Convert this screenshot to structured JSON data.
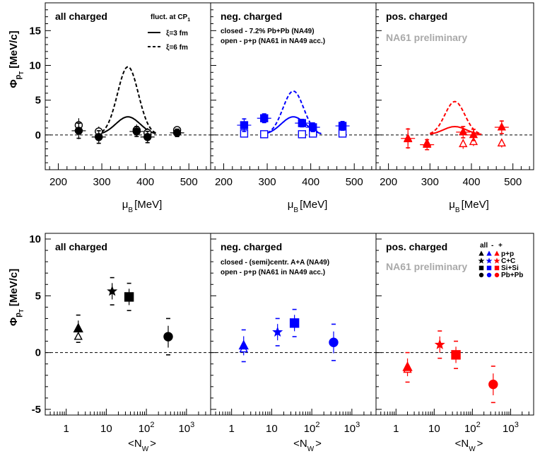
{
  "colors": {
    "all": "#000000",
    "neg": "#0000ff",
    "pos": "#ff0000",
    "prelim": "#a9a9a9"
  },
  "chart_data": [
    {
      "type": "scatter",
      "row": "top",
      "ylabel_main": "Φ",
      "ylabel_sub1": "p",
      "ylabel_sub2": "T",
      "ylabel_unit": "[MeV/c]",
      "xlabel_main": "μ",
      "xlabel_sub": "B",
      "xlabel_unit": "[MeV]",
      "xlim": [
        170,
        550
      ],
      "ylim": [
        -5,
        19
      ],
      "y_ticks": [
        "0",
        "5",
        "10",
        "15"
      ],
      "x_ticks": [
        "200",
        "300",
        "400",
        "500"
      ],
      "panels": [
        {
          "key": "all",
          "title": "all charged",
          "legend_title": "fluct. at CP",
          "legend_title_sub": "1",
          "legend_solid": "ξ=3 fm",
          "legend_dashed": "ξ=6 fm",
          "curve_solid": {
            "x0": 300,
            "x1": 425,
            "center": 360,
            "sigma": 28,
            "amp": 2.6
          },
          "curve_dashed": {
            "x0": 300,
            "x1": 425,
            "center": 360,
            "sigma": 24,
            "amp": 9.8
          },
          "closed": [
            {
              "x": 247,
              "y": 0.6,
              "err": 1.2
            },
            {
              "x": 293,
              "y": -0.3,
              "err": 1.0
            },
            {
              "x": 380,
              "y": 0.5,
              "err": 0.8
            },
            {
              "x": 405,
              "y": -0.3,
              "err": 0.9
            },
            {
              "x": 473,
              "y": 0.3,
              "err": 0.6
            }
          ],
          "open": [
            {
              "x": 247,
              "y": 1.4,
              "err": 1.0
            },
            {
              "x": 293,
              "y": 0.5,
              "err": 0.7
            },
            {
              "x": 380,
              "y": 0.7,
              "err": 0.8
            },
            {
              "x": 405,
              "y": 0.3,
              "err": 0.7
            },
            {
              "x": 473,
              "y": 0.7,
              "err": 0.5
            }
          ]
        },
        {
          "key": "neg",
          "title": "neg. charged",
          "note1": "closed - 7.2% Pb+Pb (NA49)",
          "note2": "open - p+p (NA61 in NA49 acc.)",
          "curve_solid": {
            "x0": 300,
            "x1": 425,
            "center": 360,
            "sigma": 28,
            "amp": 2.6
          },
          "curve_dashed": {
            "x0": 300,
            "x1": 425,
            "center": 360,
            "sigma": 24,
            "amp": 6.3
          },
          "closed": [
            {
              "x": 247,
              "y": 1.4,
              "err": 1.0
            },
            {
              "x": 293,
              "y": 2.4,
              "err": 0.7
            },
            {
              "x": 380,
              "y": 1.7,
              "err": 0.6
            },
            {
              "x": 405,
              "y": 1.1,
              "err": 0.7
            },
            {
              "x": 473,
              "y": 1.3,
              "err": 0.7
            }
          ],
          "open": [
            {
              "x": 247,
              "y": 0.2,
              "err": 0.5
            },
            {
              "x": 293,
              "y": 0.1,
              "err": 0.4
            },
            {
              "x": 380,
              "y": 0.1,
              "err": 0.4
            },
            {
              "x": 405,
              "y": 0.2,
              "err": 0.4
            },
            {
              "x": 473,
              "y": 0.2,
              "err": 0.4
            }
          ]
        },
        {
          "key": "pos",
          "title": "pos. charged",
          "note1": "NA61 preliminary",
          "curve_solid": {
            "x0": 300,
            "x1": 425,
            "center": 360,
            "sigma": 28,
            "amp": 1.2
          },
          "curve_dashed": {
            "x0": 300,
            "x1": 425,
            "center": 360,
            "sigma": 24,
            "amp": 4.8
          },
          "closed": [
            {
              "x": 247,
              "y": -0.5,
              "err": 1.5
            },
            {
              "x": 293,
              "y": -1.4,
              "err": 0.8
            },
            {
              "x": 380,
              "y": 0.4,
              "err": 0.9
            },
            {
              "x": 405,
              "y": 0.0,
              "err": 0.9
            },
            {
              "x": 473,
              "y": 1.1,
              "err": 1.0
            }
          ],
          "open": [
            {
              "x": 247,
              "y": -0.6,
              "err": 0.9
            },
            {
              "x": 293,
              "y": -1.2,
              "err": 0.6
            },
            {
              "x": 380,
              "y": -1.3,
              "err": 0.7
            },
            {
              "x": 405,
              "y": -1.0,
              "err": 0.6
            },
            {
              "x": 473,
              "y": -1.2,
              "err": 0.6
            }
          ]
        }
      ]
    },
    {
      "type": "scatter",
      "row": "bottom",
      "ylabel_main": "Φ",
      "ylabel_sub1": "p",
      "ylabel_sub2": "T",
      "ylabel_unit": "[MeV/c]",
      "xlabel_main": "<N",
      "xlabel_sub": "W",
      "xlabel_unit": ">",
      "x_log": true,
      "xlim": [
        0.3,
        4000
      ],
      "ylim": [
        -5.5,
        10.5
      ],
      "y_ticks": [
        "-5",
        "0",
        "5",
        "10"
      ],
      "x_ticks": [
        "1",
        "10",
        "10^2",
        "10^3"
      ],
      "panels": [
        {
          "key": "all",
          "title": "all charged",
          "points": [
            {
              "sys": "p+p",
              "x": 2,
              "y": 2.1,
              "err": 1.2,
              "open_y": 1.4,
              "open_err": 0.4
            },
            {
              "sys": "C+C",
              "x": 14,
              "y": 5.4,
              "err": 1.2
            },
            {
              "sys": "Si+Si",
              "x": 37,
              "y": 4.9,
              "err": 1.2
            },
            {
              "sys": "Pb+Pb",
              "x": 350,
              "y": 1.4,
              "err": 1.6
            }
          ]
        },
        {
          "key": "neg",
          "title": "neg. charged",
          "note1": "closed - (semi)centr. A+A (NA49)",
          "note2": "open - p+p (NA61 in NA49 acc.)",
          "points": [
            {
              "sys": "p+p",
              "x": 2,
              "y": 0.6,
              "err": 1.4,
              "open_y": 0.3,
              "open_err": 0.4
            },
            {
              "sys": "C+C",
              "x": 14,
              "y": 1.8,
              "err": 1.2
            },
            {
              "sys": "Si+Si",
              "x": 37,
              "y": 2.6,
              "err": 1.2
            },
            {
              "sys": "Pb+Pb",
              "x": 350,
              "y": 0.9,
              "err": 1.6
            }
          ]
        },
        {
          "key": "pos",
          "title": "pos. charged",
          "note1": "NA61 preliminary",
          "legend_header_all": "all",
          "legend_header_neg": "-",
          "legend_header_pos": "+",
          "legend": [
            "p+p",
            "C+C",
            "Si+Si",
            "Pb+Pb"
          ],
          "points": [
            {
              "sys": "p+p",
              "x": 2,
              "y": -1.3,
              "err": 1.3,
              "open_y": -1.5,
              "open_err": 0.4
            },
            {
              "sys": "C+C",
              "x": 14,
              "y": 0.7,
              "err": 1.2
            },
            {
              "sys": "Si+Si",
              "x": 37,
              "y": -0.2,
              "err": 1.2
            },
            {
              "sys": "Pb+Pb",
              "x": 350,
              "y": -2.8,
              "err": 1.6
            }
          ]
        }
      ]
    }
  ]
}
